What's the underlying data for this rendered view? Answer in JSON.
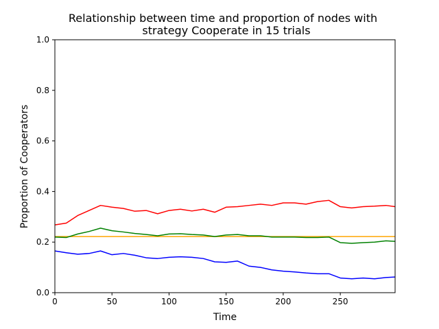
{
  "chart_data": {
    "type": "line",
    "title": [
      "Relationship between time and proportion of nodes with",
      "strategy Cooperate in 15 trials"
    ],
    "xlabel": "Time",
    "ylabel": "Proportion of Cooperators",
    "xlim": [
      0,
      298
    ],
    "ylim": [
      0.0,
      1.0
    ],
    "xticks": [
      0,
      50,
      100,
      150,
      200,
      250
    ],
    "xtick_labels": [
      "0",
      "50",
      "100",
      "150",
      "200",
      "250"
    ],
    "yticks": [
      0.0,
      0.2,
      0.4,
      0.6,
      0.8,
      1.0
    ],
    "ytick_labels": [
      "0.0",
      "0.2",
      "0.4",
      "0.6",
      "0.8",
      "1.0"
    ],
    "grid": false,
    "legend": null,
    "series": [
      {
        "color": "#ff0000",
        "x": [
          0,
          10,
          20,
          30,
          40,
          50,
          60,
          70,
          80,
          90,
          100,
          110,
          120,
          130,
          140,
          150,
          160,
          170,
          180,
          190,
          200,
          210,
          220,
          230,
          240,
          250,
          260,
          270,
          280,
          290,
          298
        ],
        "values": [
          0.268,
          0.275,
          0.305,
          0.325,
          0.345,
          0.338,
          0.333,
          0.322,
          0.325,
          0.312,
          0.325,
          0.33,
          0.323,
          0.33,
          0.318,
          0.338,
          0.34,
          0.345,
          0.35,
          0.345,
          0.355,
          0.355,
          0.35,
          0.36,
          0.365,
          0.34,
          0.335,
          0.34,
          0.342,
          0.345,
          0.34
        ]
      },
      {
        "color": "#ffa500",
        "x": [
          0,
          298
        ],
        "values": [
          0.222,
          0.222
        ]
      },
      {
        "color": "#008000",
        "x": [
          0,
          10,
          20,
          30,
          40,
          50,
          60,
          70,
          80,
          90,
          100,
          110,
          120,
          130,
          140,
          150,
          160,
          170,
          180,
          190,
          200,
          210,
          220,
          230,
          240,
          250,
          260,
          270,
          280,
          290,
          298
        ],
        "values": [
          0.22,
          0.218,
          0.232,
          0.242,
          0.255,
          0.245,
          0.24,
          0.234,
          0.23,
          0.225,
          0.232,
          0.233,
          0.23,
          0.228,
          0.222,
          0.228,
          0.23,
          0.225,
          0.225,
          0.22,
          0.22,
          0.22,
          0.218,
          0.218,
          0.22,
          0.198,
          0.195,
          0.198,
          0.2,
          0.205,
          0.203
        ]
      },
      {
        "color": "#0000ff",
        "x": [
          0,
          10,
          20,
          30,
          40,
          50,
          60,
          70,
          80,
          90,
          100,
          110,
          120,
          130,
          140,
          150,
          160,
          170,
          180,
          190,
          200,
          210,
          220,
          230,
          240,
          250,
          260,
          270,
          280,
          290,
          298
        ],
        "values": [
          0.165,
          0.158,
          0.152,
          0.155,
          0.165,
          0.15,
          0.155,
          0.148,
          0.138,
          0.135,
          0.14,
          0.142,
          0.14,
          0.135,
          0.122,
          0.12,
          0.125,
          0.105,
          0.1,
          0.09,
          0.085,
          0.082,
          0.078,
          0.075,
          0.075,
          0.058,
          0.055,
          0.058,
          0.055,
          0.06,
          0.062
        ]
      }
    ]
  }
}
